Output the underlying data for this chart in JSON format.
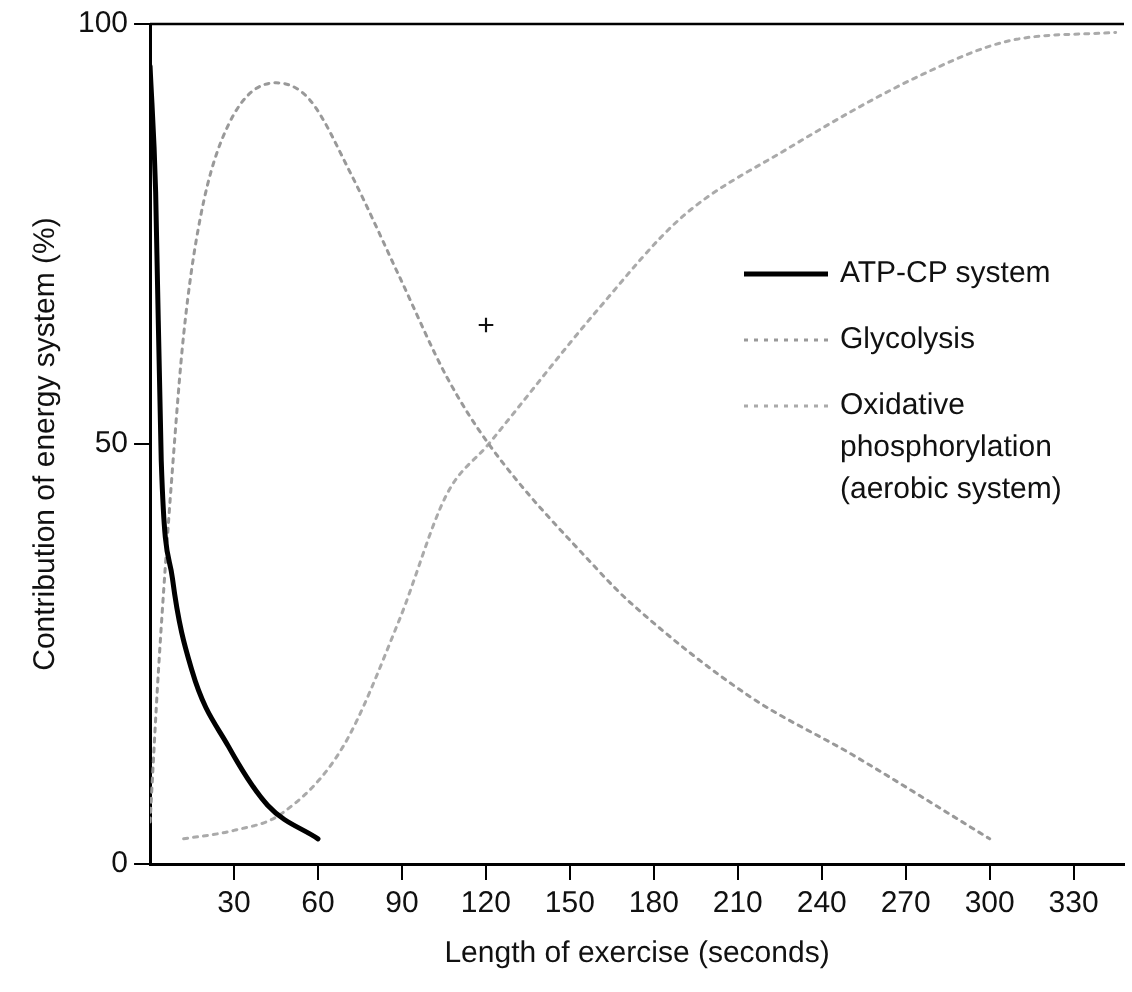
{
  "chart_data": {
    "type": "line",
    "xlabel": "Length of exercise (seconds)",
    "ylabel": "Contribution of energy system (%)",
    "xlim": [
      0,
      348
    ],
    "xticks": [
      30,
      60,
      90,
      120,
      150,
      180,
      210,
      240,
      270,
      300,
      330
    ],
    "ylim": [
      0,
      100
    ],
    "yticks": [
      0,
      50,
      100
    ],
    "grid": false,
    "legend": "right",
    "marker": "none",
    "annotations": [
      "+"
    ],
    "series": [
      {
        "name": "ATP-CP system",
        "color": "#000000",
        "line_style": "solid",
        "x": [
          0,
          2,
          4,
          8,
          15,
          28,
          42,
          60
        ],
        "values": [
          95,
          80,
          48,
          34,
          23,
          14,
          7,
          3
        ]
      },
      {
        "name": "Glycolysis",
        "color": "#999999",
        "line_style": "dotted",
        "x": [
          0,
          3,
          8,
          12,
          18,
          28,
          45,
          57,
          72,
          89,
          106,
          121,
          160,
          172,
          214,
          251,
          300
        ],
        "values": [
          5,
          23,
          47,
          63,
          77,
          88,
          93,
          91,
          82,
          70,
          58,
          50,
          35,
          31,
          20,
          13,
          3
        ]
      },
      {
        "name": "Oxidative phosphorylation (aerobic system)",
        "color": "#aaaaaa",
        "line_style": "dotted",
        "x": [
          12,
          30,
          47,
          69,
          89,
          106,
          121,
          160,
          190,
          227,
          276,
          307,
          345
        ],
        "values": [
          3,
          4,
          6,
          14,
          29,
          44,
          50,
          66,
          77,
          85,
          94,
          98,
          99
        ]
      }
    ]
  }
}
